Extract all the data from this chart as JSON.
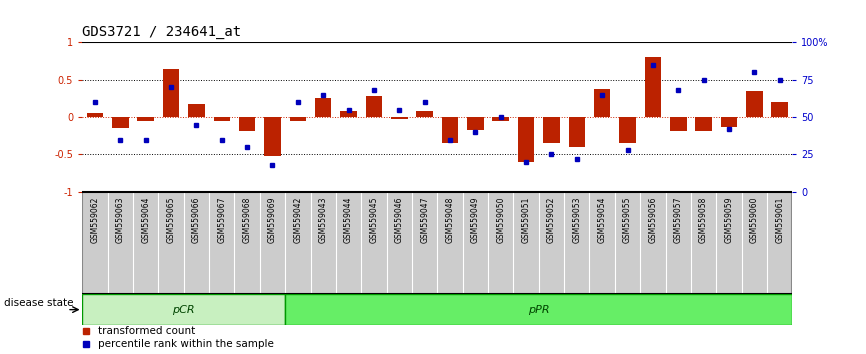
{
  "title": "GDS3721 / 234641_at",
  "samples": [
    "GSM559062",
    "GSM559063",
    "GSM559064",
    "GSM559065",
    "GSM559066",
    "GSM559067",
    "GSM559068",
    "GSM559069",
    "GSM559042",
    "GSM559043",
    "GSM559044",
    "GSM559045",
    "GSM559046",
    "GSM559047",
    "GSM559048",
    "GSM559049",
    "GSM559050",
    "GSM559051",
    "GSM559052",
    "GSM559053",
    "GSM559054",
    "GSM559055",
    "GSM559056",
    "GSM559057",
    "GSM559058",
    "GSM559059",
    "GSM559060",
    "GSM559061"
  ],
  "transformed_count": [
    0.05,
    -0.15,
    -0.05,
    0.65,
    0.17,
    -0.05,
    -0.18,
    -0.52,
    -0.05,
    0.26,
    0.08,
    0.28,
    -0.03,
    0.08,
    -0.35,
    -0.17,
    -0.05,
    -0.6,
    -0.35,
    -0.4,
    0.38,
    -0.35,
    0.8,
    -0.18,
    -0.18,
    -0.13,
    0.35,
    0.2
  ],
  "percentile_rank": [
    60,
    35,
    35,
    70,
    45,
    35,
    30,
    18,
    60,
    65,
    55,
    68,
    55,
    60,
    35,
    40,
    50,
    20,
    25,
    22,
    65,
    28,
    85,
    68,
    75,
    42,
    80,
    75
  ],
  "pcr_count": 8,
  "ppr_count": 20,
  "pcr_color": "#c8f0c0",
  "ppr_color": "#66ee66",
  "group_border_color": "#009900",
  "bar_color": "#bb2200",
  "dot_color": "#0000bb",
  "background_color": "#ffffff",
  "label_bg_color": "#cccccc",
  "label_border_color": "#888888",
  "ylim": [
    -1.0,
    1.0
  ],
  "title_fontsize": 10,
  "tick_fontsize": 7,
  "legend_fontsize": 7.5
}
